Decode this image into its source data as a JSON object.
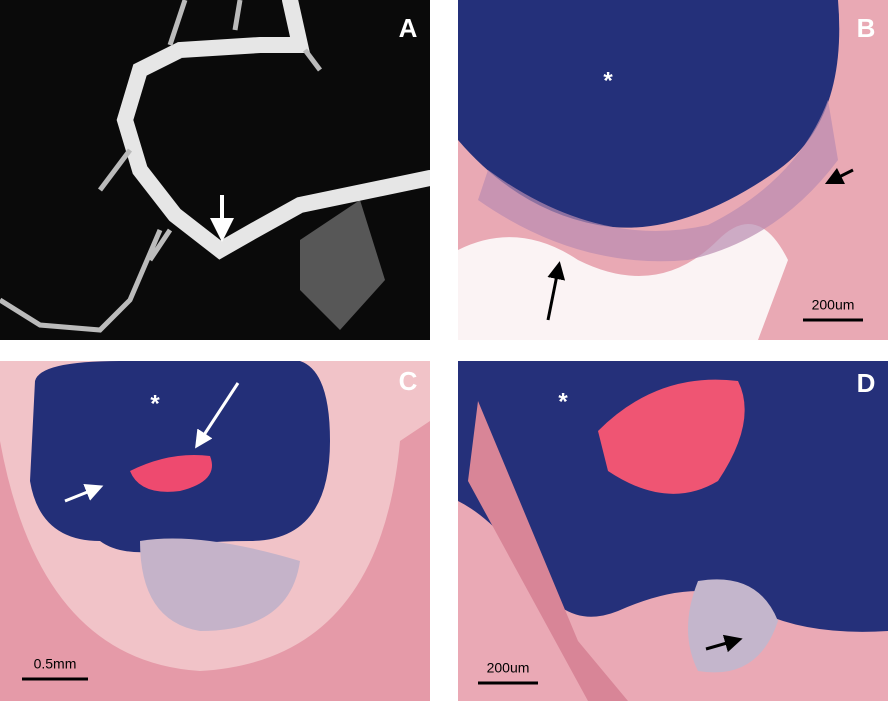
{
  "panels": [
    {
      "label": "A"
    },
    {
      "label": "B",
      "annotation": "*",
      "scale_bar": "200um"
    },
    {
      "label": "C",
      "annotation": "*",
      "scale_bar": "0.5mm"
    },
    {
      "label": "D",
      "annotation": "*",
      "scale_bar": "200um"
    }
  ]
}
